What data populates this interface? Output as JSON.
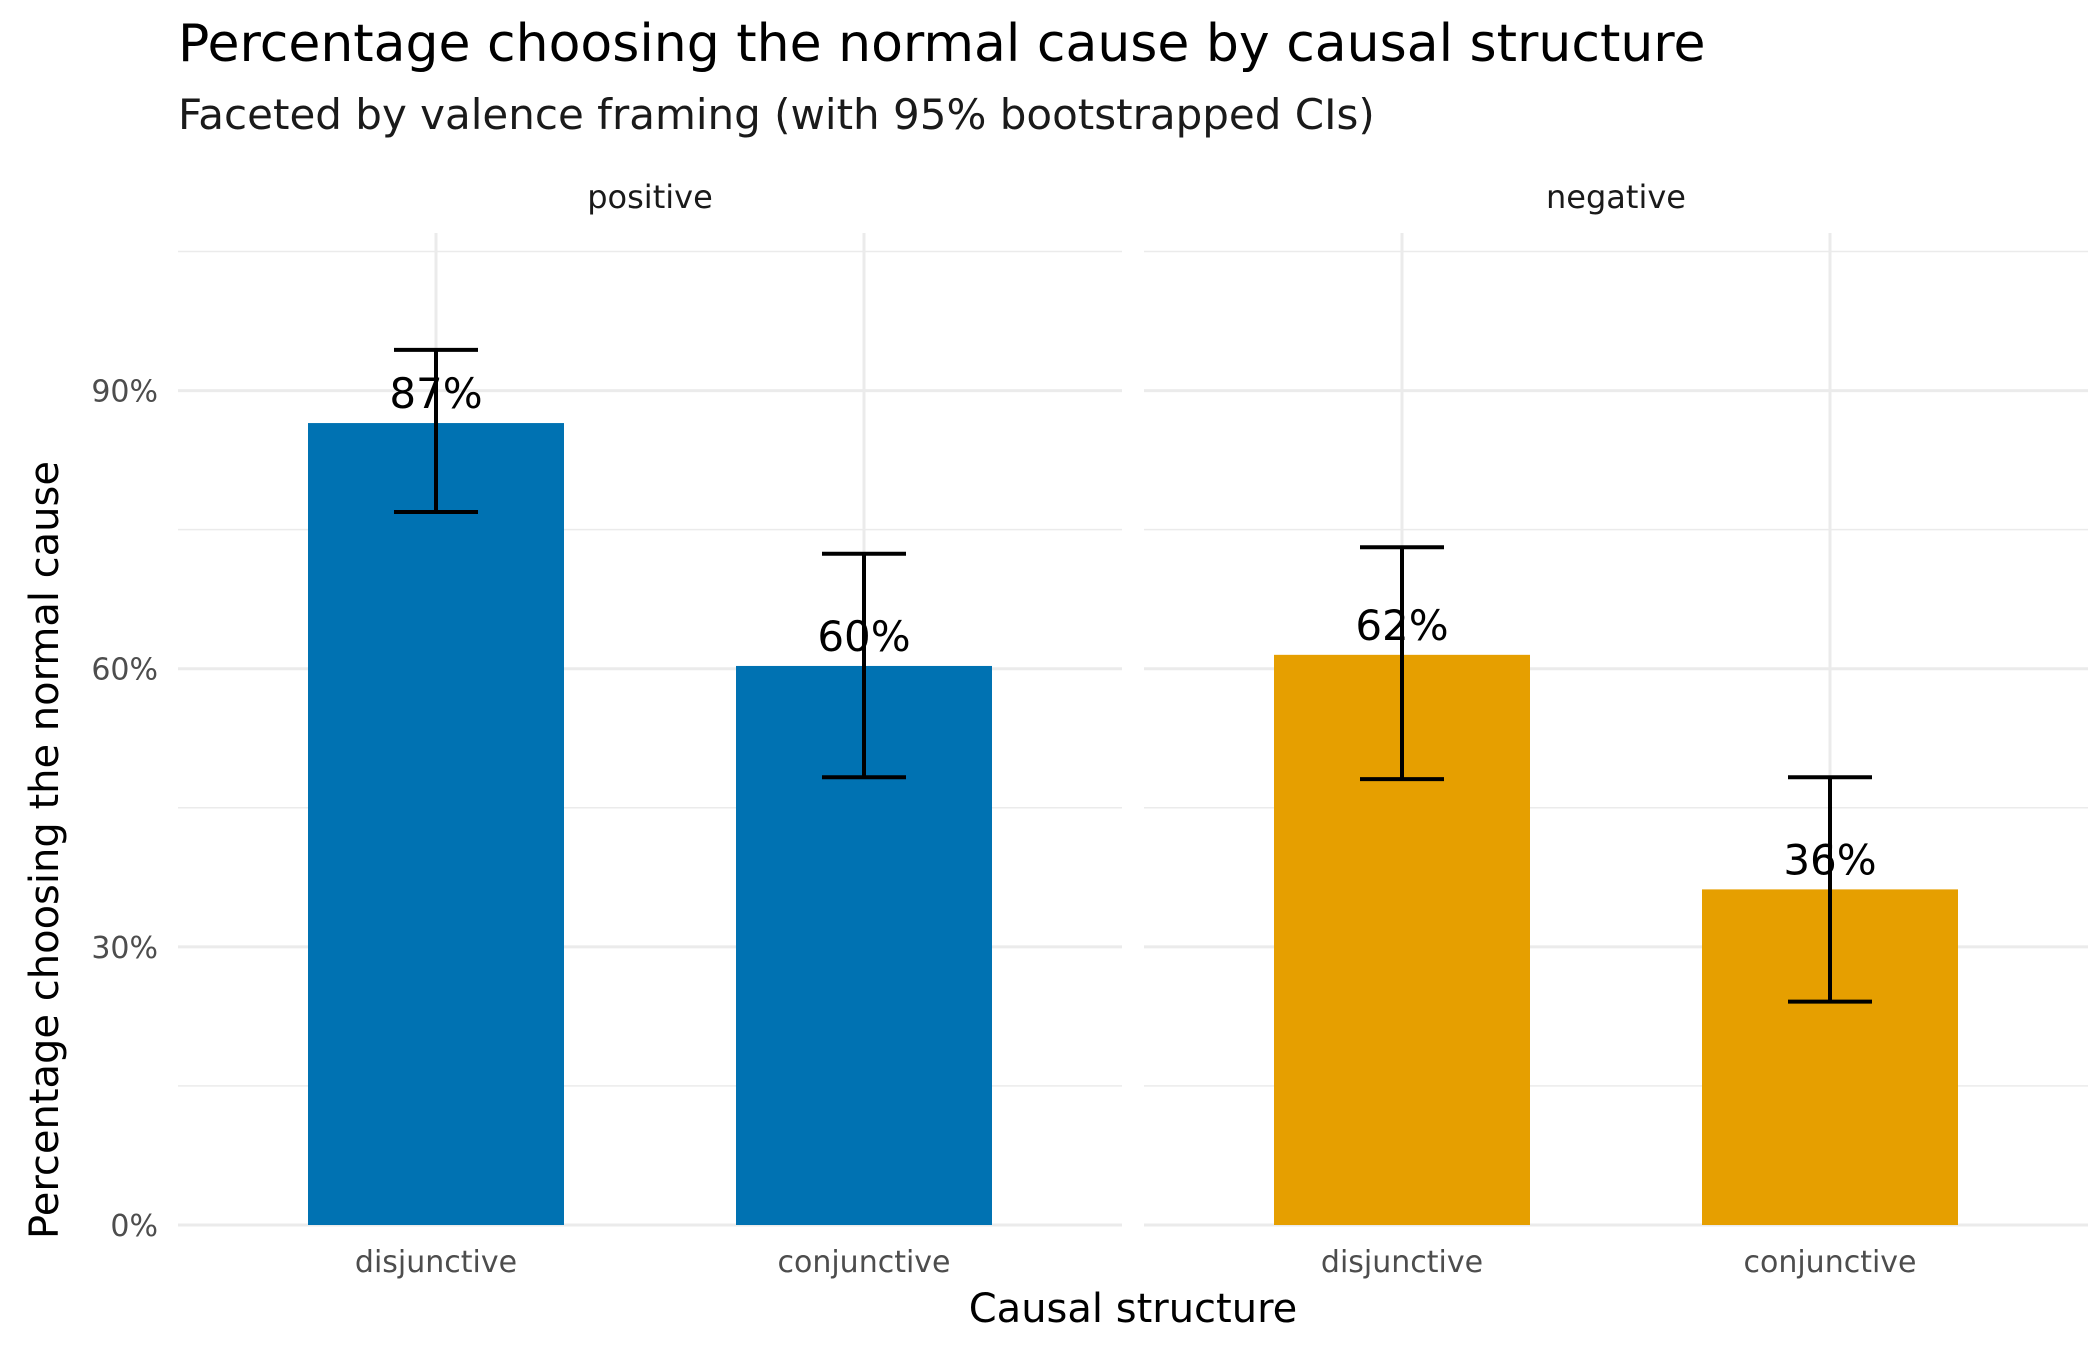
{
  "chart_data": {
    "type": "bar",
    "title": "Percentage choosing the normal cause by causal structure",
    "subtitle": "Faceted by valence framing (with 95% bootstrapped CIs)",
    "xlabel": "Causal structure",
    "ylabel": "Percentage choosing the normal cause",
    "ylim": [
      0,
      107
    ],
    "yticks": [
      0,
      30,
      60,
      90
    ],
    "ytick_labels": [
      "0%",
      "30%",
      "60%",
      "90%"
    ],
    "grid": true,
    "legend": "none",
    "categories": [
      "disjunctive",
      "conjunctive"
    ],
    "facets": [
      {
        "name": "positive",
        "color": "#0072B2",
        "values": [
          86.5,
          60.3
        ],
        "labels": [
          "87%",
          "60%"
        ],
        "ci_low": [
          76.9,
          48.3
        ],
        "ci_high": [
          94.4,
          72.4
        ]
      },
      {
        "name": "negative",
        "color": "#E69F00",
        "values": [
          61.5,
          36.2
        ],
        "labels": [
          "62%",
          "36%"
        ],
        "ci_low": [
          48.1,
          24.1
        ],
        "ci_high": [
          73.1,
          48.3
        ]
      }
    ]
  }
}
